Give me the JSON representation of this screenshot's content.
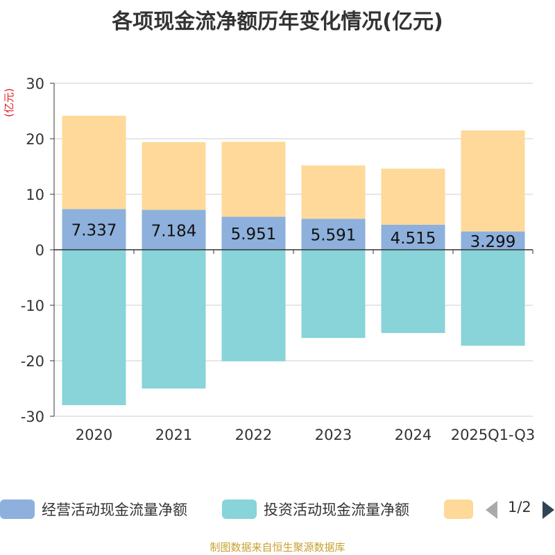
{
  "chart_title": "各项现金流净额历年变化情况(亿元)",
  "source_text": "制图数据来自恒生聚源数据库",
  "legend_page": "1/2",
  "chart_data": {
    "type": "bar",
    "stacked": true,
    "title": "各项现金流净额历年变化情况(亿元)",
    "ylabel": "(亿元)",
    "ylim": [
      -30,
      30
    ],
    "yticks": [
      30,
      20,
      10,
      0,
      -10,
      -20,
      -30
    ],
    "grid": true,
    "legend_position": "bottom",
    "categories": [
      "2020",
      "2021",
      "2022",
      "2023",
      "2024",
      "2025Q1-Q3"
    ],
    "series": [
      {
        "name": "经营活动现金流量净额",
        "color": "#8eb0dc",
        "values": [
          7.337,
          7.184,
          5.951,
          5.591,
          4.515,
          3.299
        ],
        "show_labels": true
      },
      {
        "name": "投资活动现金流量净额",
        "color": "#88d4d8",
        "values": [
          -28.0,
          -25.0,
          -20.1,
          -15.9,
          -15.0,
          -17.3
        ],
        "show_labels": false
      },
      {
        "name": "",
        "color": "#ffd999",
        "values": [
          16.8,
          12.2,
          13.5,
          9.6,
          10.1,
          18.2
        ],
        "show_labels": false
      }
    ]
  }
}
